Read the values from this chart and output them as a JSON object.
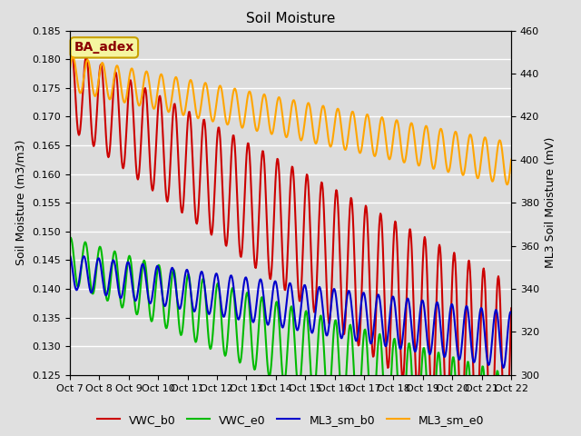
{
  "title": "Soil Moisture",
  "ylabel_left": "Soil Moisture (m3/m3)",
  "ylabel_right": "ML3 Soil Moisture (mV)",
  "ylim_left": [
    0.125,
    0.185
  ],
  "ylim_right": [
    300,
    460
  ],
  "fig_bg_color": "#e0e0e0",
  "plot_bg_color": "#dcdcdc",
  "annotation_text": "BA_adex",
  "annotation_color": "#8B0000",
  "annotation_bg": "#f5f5a0",
  "annotation_border": "#c8a000",
  "xtick_labels": [
    "Oct 7",
    "Oct 8",
    "Oct 9",
    "Oct 10",
    "Oct 11",
    "Oct 12",
    "Oct 13",
    "Oct 14",
    "Oct 15",
    "Oct 16",
    "Oct 17",
    "Oct 18",
    "Oct 19",
    "Oct 20",
    "Oct 21",
    "Oct 22"
  ],
  "yticks_left": [
    0.125,
    0.13,
    0.135,
    0.14,
    0.145,
    0.15,
    0.155,
    0.16,
    0.165,
    0.17,
    0.175,
    0.18,
    0.185
  ],
  "yticks_right": [
    300,
    320,
    340,
    360,
    380,
    400,
    420,
    440,
    460
  ],
  "series": {
    "VWC_b0": {
      "color": "#cc0000",
      "lw": 1.5
    },
    "VWC_e0": {
      "color": "#00bb00",
      "lw": 1.5
    },
    "ML3_sm_b0": {
      "color": "#0000cc",
      "lw": 1.5
    },
    "ML3_sm_e0": {
      "color": "#ffa500",
      "lw": 1.5
    }
  }
}
